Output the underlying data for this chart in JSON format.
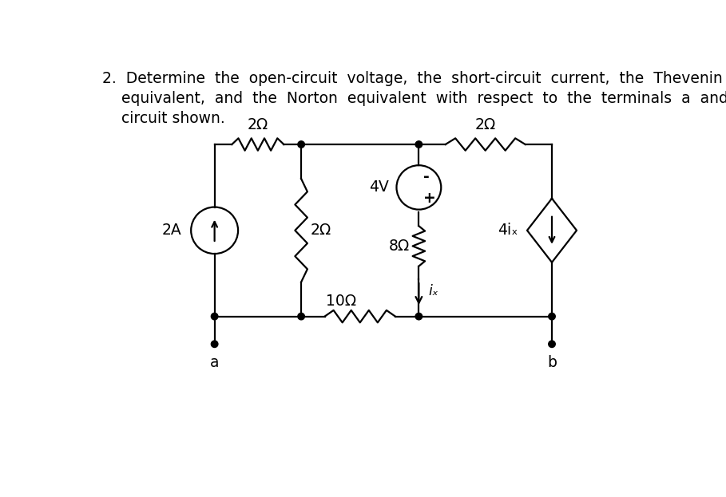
{
  "background_color": "#ffffff",
  "line_color": "#000000",
  "resistor_2ohm_top_left_label": "2Ω",
  "resistor_2ohm_top_right_label": "2Ω",
  "resistor_2ohm_mid_label": "2Ω",
  "resistor_8ohm_label": "8Ω",
  "resistor_10ohm_label": "10Ω",
  "cs_label": "2A",
  "vs_label": "4V",
  "ccs_label": "4iₓ",
  "ix_label": "iₓ",
  "node_a_label": "a",
  "node_b_label": "b",
  "plus_label": "+",
  "minus_label": "-",
  "title_line1": "2.  Determine  the  open-circuit  voltage,  the  short-circuit  current,  the  Thevenin",
  "title_line2": "    equivalent,  and  the  Norton  equivalent  with  respect  to  the  terminals  a  and  b  in  the",
  "title_line3": "    circuit shown.",
  "font_size": 13.5
}
